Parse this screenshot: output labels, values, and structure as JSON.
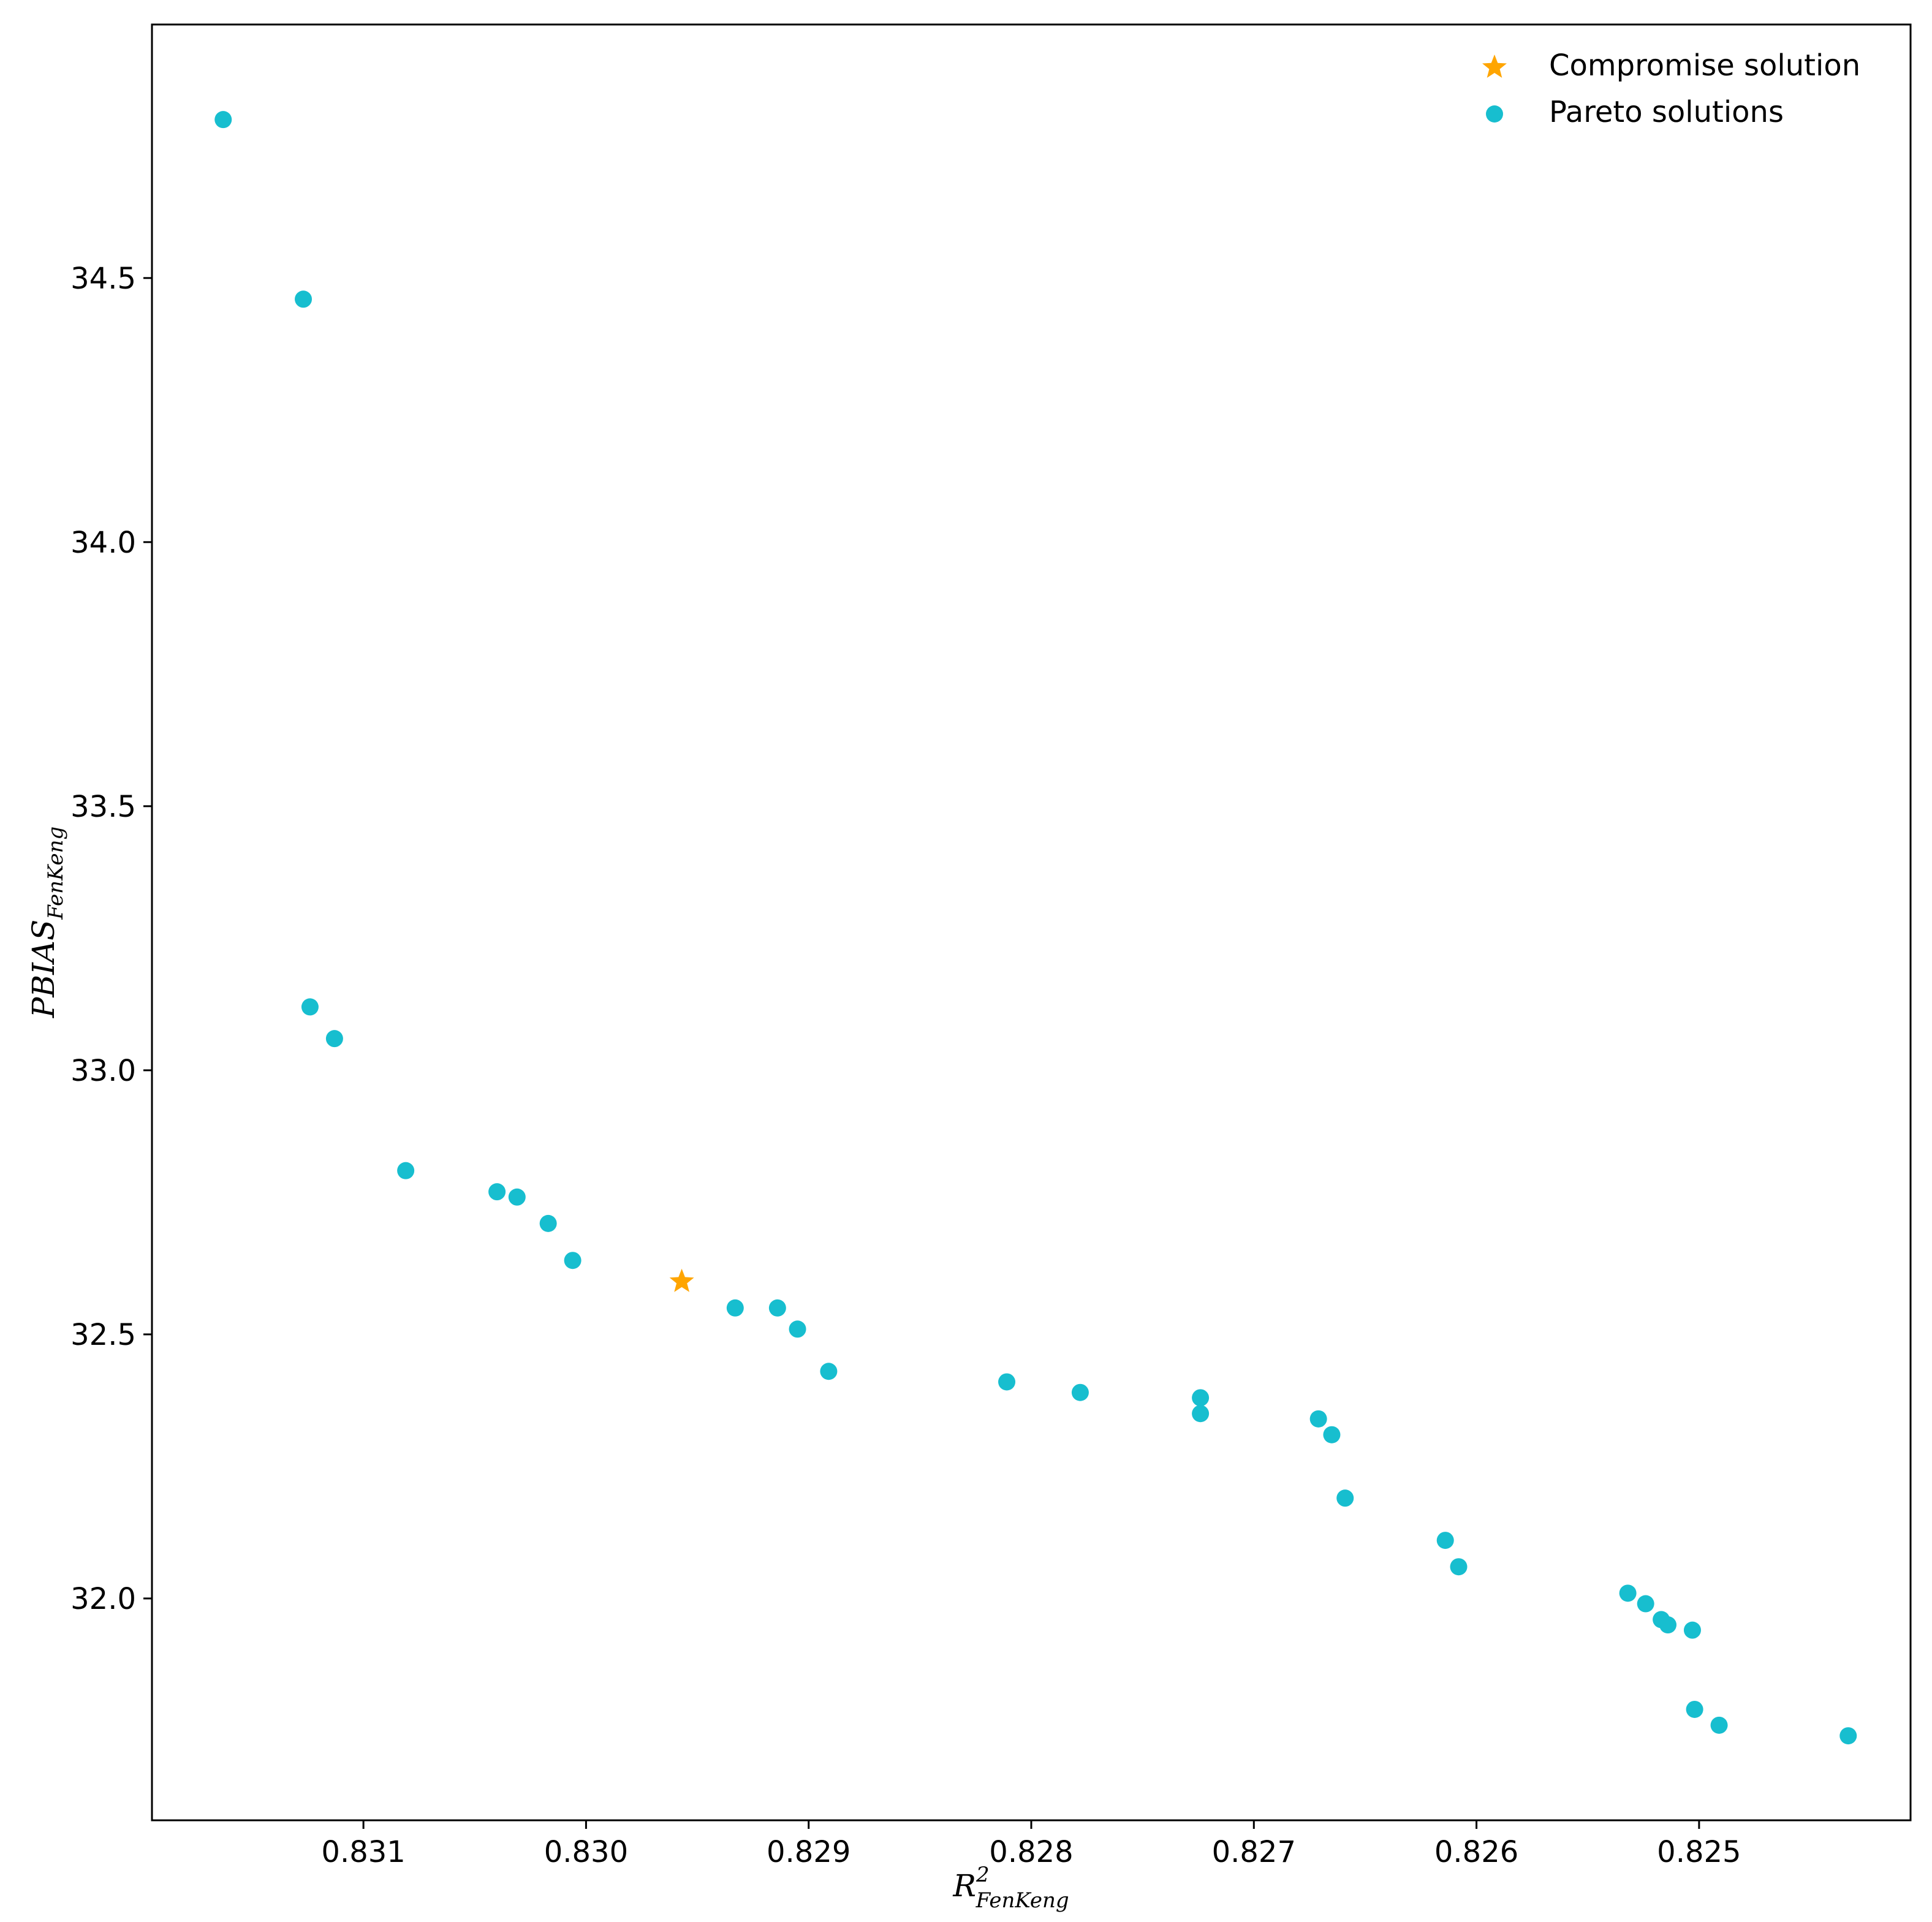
{
  "chart_data": {
    "type": "scatter",
    "xlabel": {
      "base": "R",
      "superscript": "2",
      "subscript": "FenKeng"
    },
    "ylabel": {
      "base": "PBIAS",
      "subscript": "FenKeng"
    },
    "x_inverted": true,
    "xlim": [
      0.83195,
      0.82405
    ],
    "ylim": [
      31.58,
      34.98
    ],
    "x_ticks": [
      0.831,
      0.83,
      0.829,
      0.828,
      0.827,
      0.826,
      0.825
    ],
    "x_tick_labels": [
      "0.831",
      "0.830",
      "0.829",
      "0.828",
      "0.827",
      "0.826",
      "0.825"
    ],
    "y_ticks": [
      32.0,
      32.5,
      33.0,
      33.5,
      34.0,
      34.5
    ],
    "y_tick_labels": [
      "32.0",
      "32.5",
      "33.0",
      "33.5",
      "34.0",
      "34.5"
    ],
    "grid": false,
    "legend_position": "top-right",
    "series": [
      {
        "name": "Compromise solution",
        "marker": "star",
        "color": "#FFA500",
        "points": [
          [
            0.82957,
            32.6
          ]
        ]
      },
      {
        "name": "Pareto solutions",
        "marker": "circle",
        "color": "#17BECF",
        "points": [
          [
            0.83163,
            34.8
          ],
          [
            0.83127,
            34.46
          ],
          [
            0.83124,
            33.12
          ],
          [
            0.83113,
            33.06
          ],
          [
            0.83081,
            32.81
          ],
          [
            0.8304,
            32.77
          ],
          [
            0.83031,
            32.76
          ],
          [
            0.83017,
            32.71
          ],
          [
            0.83006,
            32.64
          ],
          [
            0.82933,
            32.55
          ],
          [
            0.82914,
            32.55
          ],
          [
            0.82905,
            32.51
          ],
          [
            0.82891,
            32.43
          ],
          [
            0.82811,
            32.41
          ],
          [
            0.82778,
            32.39
          ],
          [
            0.82724,
            32.38
          ],
          [
            0.82724,
            32.35
          ],
          [
            0.82671,
            32.34
          ],
          [
            0.82665,
            32.31
          ],
          [
            0.82659,
            32.19
          ],
          [
            0.82614,
            32.11
          ],
          [
            0.82608,
            32.06
          ],
          [
            0.82532,
            32.01
          ],
          [
            0.82524,
            31.99
          ],
          [
            0.82517,
            31.96
          ],
          [
            0.82514,
            31.95
          ],
          [
            0.82503,
            31.94
          ],
          [
            0.82502,
            31.79
          ],
          [
            0.82491,
            31.76
          ],
          [
            0.82433,
            31.74
          ]
        ]
      }
    ]
  }
}
